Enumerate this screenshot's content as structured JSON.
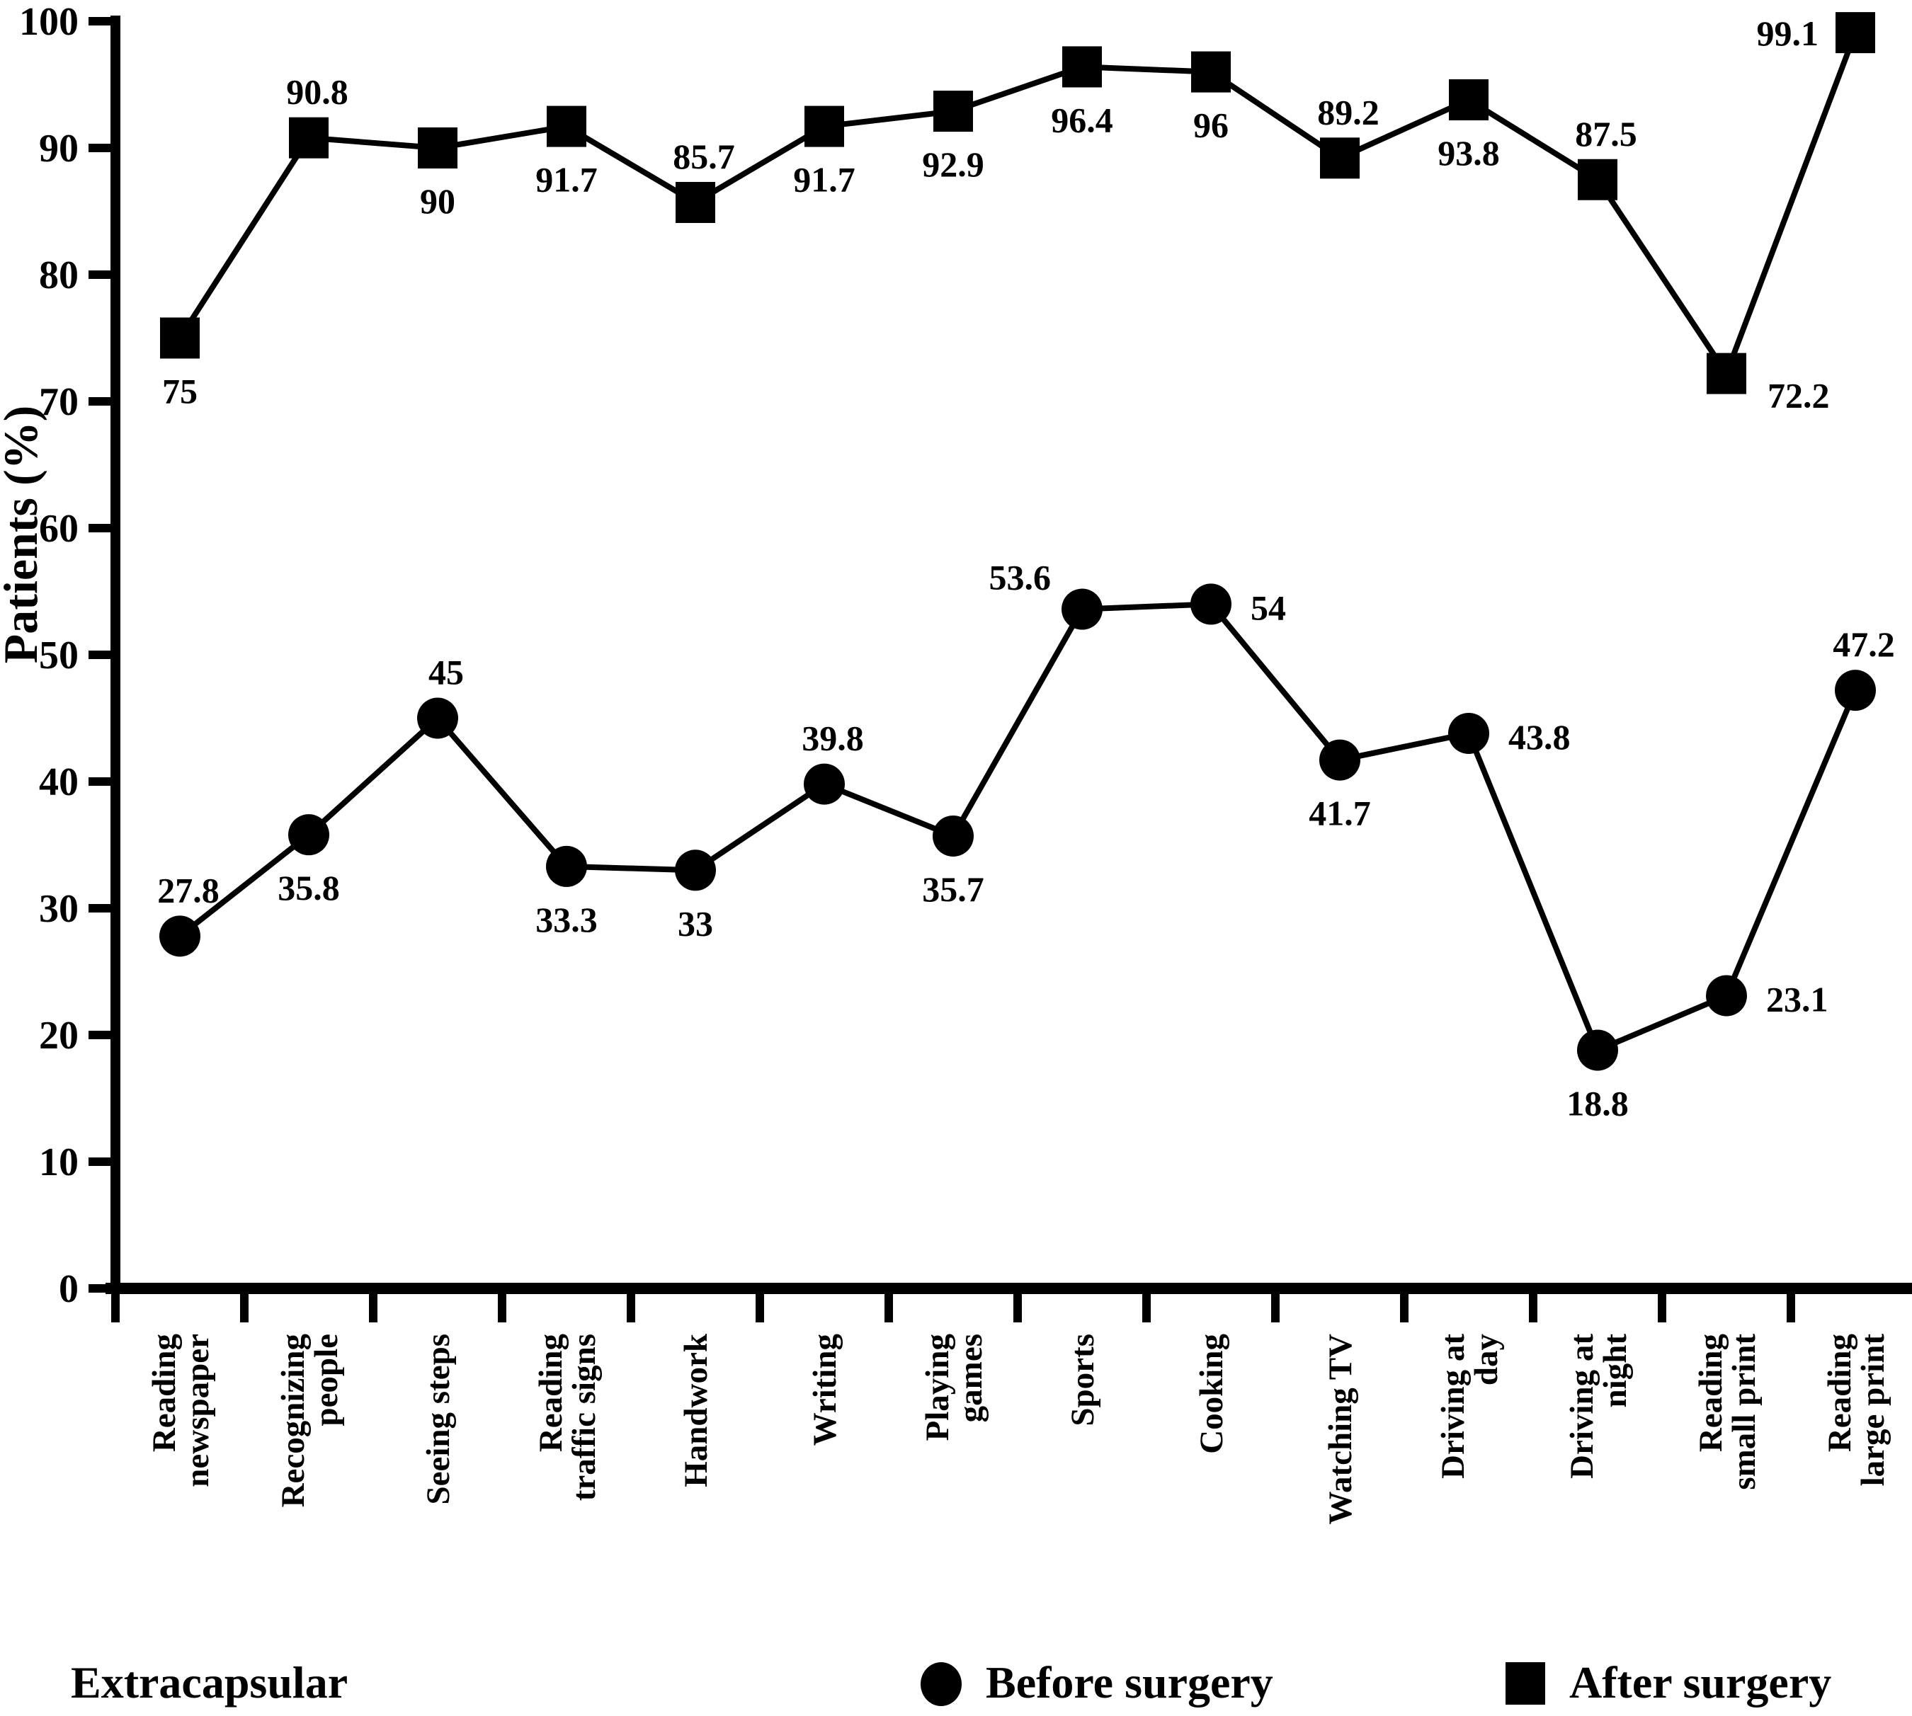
{
  "chart_data": {
    "type": "line",
    "title": "",
    "xlabel": "",
    "ylabel": "Patients (%)",
    "ylim": [
      0,
      100
    ],
    "yticks": [
      0,
      10,
      20,
      30,
      40,
      50,
      60,
      70,
      80,
      90,
      100
    ],
    "grid": false,
    "legend_position": "bottom",
    "footer_label": "Extracapsular",
    "categories": [
      [
        "Reading",
        "newspaper"
      ],
      [
        "Recognizing",
        "people"
      ],
      [
        "Seeing steps"
      ],
      [
        "Reading",
        "traffic signs"
      ],
      [
        "Handwork"
      ],
      [
        "Writing"
      ],
      [
        "Playing",
        "games"
      ],
      [
        "Sports"
      ],
      [
        "Cooking"
      ],
      [
        "Watching TV"
      ],
      [
        "Driving at",
        "day"
      ],
      [
        "Driving at",
        "night"
      ],
      [
        "Reading",
        "small print"
      ],
      [
        "Reading",
        "large print"
      ]
    ],
    "series": [
      {
        "name": "Before surgery",
        "marker": "circle",
        "color": "#000000",
        "values": [
          27.8,
          35.8,
          45,
          33.3,
          33,
          39.8,
          35.7,
          53.6,
          54,
          41.7,
          43.8,
          18.8,
          23.1,
          47.2
        ],
        "value_labels": [
          "27.8",
          "35.8",
          "45",
          "33.3",
          "33",
          "39.8",
          "35.7",
          "53.6",
          "54",
          "41.7",
          "43.8",
          "18.8",
          "23.1",
          "47.2"
        ],
        "label_pos": [
          "above",
          "below",
          "above",
          "below",
          "below",
          "above",
          "below",
          "left-above",
          "right",
          "below",
          "right",
          "below",
          "right",
          "above"
        ]
      },
      {
        "name": "After surgery",
        "marker": "square",
        "color": "#000000",
        "values": [
          75,
          90.8,
          90,
          91.7,
          85.7,
          91.7,
          92.9,
          96.4,
          96,
          89.2,
          93.8,
          87.5,
          72.2,
          99.1
        ],
        "value_labels": [
          "75",
          "90.8",
          "90",
          "91.7",
          "85.7",
          "91.7",
          "92.9",
          "96.4",
          "96",
          "89.2",
          "93.8",
          "87.5",
          "72.2",
          "99.1"
        ],
        "label_pos": [
          "below",
          "above",
          "below",
          "below",
          "above",
          "below",
          "below",
          "below",
          "below",
          "above",
          "below",
          "above",
          "right-below",
          "left"
        ]
      }
    ],
    "legend": [
      {
        "label": "Before surgery",
        "marker": "circle"
      },
      {
        "label": "After surgery",
        "marker": "square"
      }
    ]
  }
}
